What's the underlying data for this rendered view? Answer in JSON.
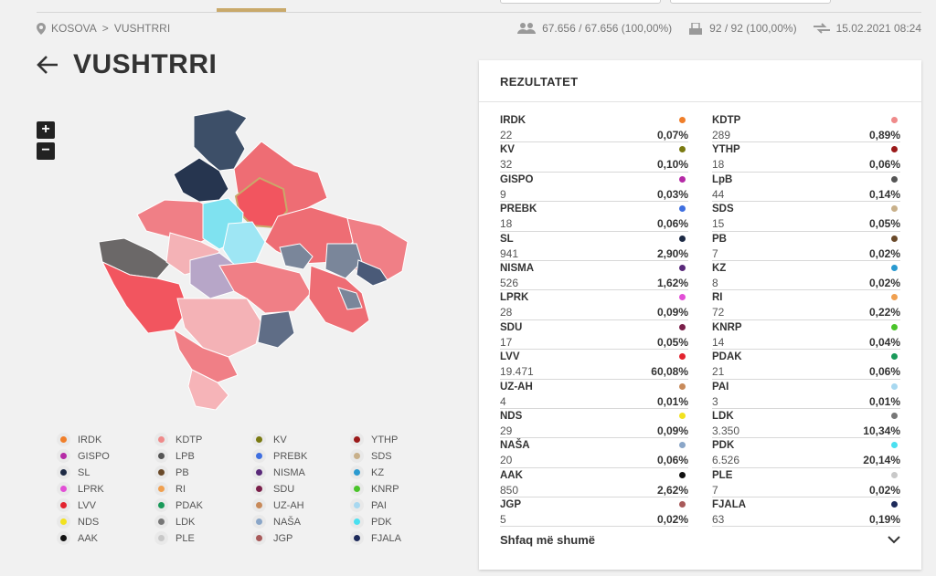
{
  "breadcrumb": {
    "root": "KOSOVA",
    "separator": ">",
    "current": "VUSHTRRI"
  },
  "stats": {
    "voters": "67.656 / 67.656 (100,00%)",
    "polling_stations": "92 / 92 (100,00%)",
    "updated": "15.02.2021 08:24"
  },
  "page": {
    "title": "VUSHTRRI"
  },
  "zoom": {
    "in": "+",
    "out": "−"
  },
  "results": {
    "title": "REZULTATET",
    "show_more": "Shfaq më shumë",
    "left": [
      {
        "name": "IRDK",
        "votes": "22",
        "pct": "0,07%",
        "color": "#f07f2a"
      },
      {
        "name": "KV",
        "votes": "32",
        "pct": "0,10%",
        "color": "#7a7a12"
      },
      {
        "name": "GISPO",
        "votes": "9",
        "pct": "0,03%",
        "color": "#b52aa6"
      },
      {
        "name": "PREBK",
        "votes": "18",
        "pct": "0,06%",
        "color": "#3f6fe0"
      },
      {
        "name": "SL",
        "votes": "941",
        "pct": "2,90%",
        "color": "#1d2a44"
      },
      {
        "name": "NISMA",
        "votes": "526",
        "pct": "1,62%",
        "color": "#5a2a7a"
      },
      {
        "name": "LPRK",
        "votes": "28",
        "pct": "0,09%",
        "color": "#e24fd6"
      },
      {
        "name": "SDU",
        "votes": "17",
        "pct": "0,05%",
        "color": "#7a1f4a"
      },
      {
        "name": "LVV",
        "votes": "19.471",
        "pct": "60,08%",
        "color": "#e3232f"
      },
      {
        "name": "UZ-AH",
        "votes": "4",
        "pct": "0,01%",
        "color": "#c88a5a"
      },
      {
        "name": "NDS",
        "votes": "29",
        "pct": "0,09%",
        "color": "#f2e21f"
      },
      {
        "name": "NAŠA",
        "votes": "20",
        "pct": "0,06%",
        "color": "#8aa6c8"
      },
      {
        "name": "AAK",
        "votes": "850",
        "pct": "2,62%",
        "color": "#111111"
      },
      {
        "name": "JGP",
        "votes": "5",
        "pct": "0,02%",
        "color": "#a85a5a"
      }
    ],
    "right": [
      {
        "name": "KDTP",
        "votes": "289",
        "pct": "0,89%",
        "color": "#ef8a8a"
      },
      {
        "name": "YTHP",
        "votes": "18",
        "pct": "0,06%",
        "color": "#9b1a1a"
      },
      {
        "name": "LpB",
        "votes": "44",
        "pct": "0,14%",
        "color": "#555555"
      },
      {
        "name": "SDS",
        "votes": "15",
        "pct": "0,05%",
        "color": "#c8b08a"
      },
      {
        "name": "PB",
        "votes": "7",
        "pct": "0,02%",
        "color": "#6a4a2a"
      },
      {
        "name": "KZ",
        "votes": "8",
        "pct": "0,02%",
        "color": "#2a9ad0"
      },
      {
        "name": "RI",
        "votes": "72",
        "pct": "0,22%",
        "color": "#f0a050"
      },
      {
        "name": "KNRP",
        "votes": "14",
        "pct": "0,04%",
        "color": "#4ac42a"
      },
      {
        "name": "PDAK",
        "votes": "21",
        "pct": "0,06%",
        "color": "#1a9a5a"
      },
      {
        "name": "PAI",
        "votes": "3",
        "pct": "0,01%",
        "color": "#a8d8f0"
      },
      {
        "name": "LDK",
        "votes": "3.350",
        "pct": "10,34%",
        "color": "#777777"
      },
      {
        "name": "PDK",
        "votes": "6.526",
        "pct": "20,14%",
        "color": "#4ae0f0"
      },
      {
        "name": "PLE",
        "votes": "7",
        "pct": "0,02%",
        "color": "#c8c8c8"
      },
      {
        "name": "FJALA",
        "votes": "63",
        "pct": "0,19%",
        "color": "#1d2a5a"
      }
    ]
  },
  "legend": [
    {
      "name": "IRDK",
      "color": "#f07f2a"
    },
    {
      "name": "KDTP",
      "color": "#ef8a8a"
    },
    {
      "name": "KV",
      "color": "#7a7a12"
    },
    {
      "name": "YTHP",
      "color": "#9b1a1a"
    },
    {
      "name": "GISPO",
      "color": "#b52aa6"
    },
    {
      "name": "LPB",
      "color": "#555555"
    },
    {
      "name": "PREBK",
      "color": "#3f6fe0"
    },
    {
      "name": "SDS",
      "color": "#c8b08a"
    },
    {
      "name": "SL",
      "color": "#1d2a44"
    },
    {
      "name": "PB",
      "color": "#6a4a2a"
    },
    {
      "name": "NISMA",
      "color": "#5a2a7a"
    },
    {
      "name": "KZ",
      "color": "#2a9ad0"
    },
    {
      "name": "LPRK",
      "color": "#e24fd6"
    },
    {
      "name": "RI",
      "color": "#f0a050"
    },
    {
      "name": "SDU",
      "color": "#7a1f4a"
    },
    {
      "name": "KNRP",
      "color": "#4ac42a"
    },
    {
      "name": "LVV",
      "color": "#e3232f"
    },
    {
      "name": "PDAK",
      "color": "#1a9a5a"
    },
    {
      "name": "UZ-AH",
      "color": "#c88a5a"
    },
    {
      "name": "PAI",
      "color": "#a8d8f0"
    },
    {
      "name": "NDS",
      "color": "#f2e21f"
    },
    {
      "name": "LDK",
      "color": "#777777"
    },
    {
      "name": "NAŠA",
      "color": "#8aa6c8"
    },
    {
      "name": "PDK",
      "color": "#4ae0f0"
    },
    {
      "name": "AAK",
      "color": "#111111"
    },
    {
      "name": "PLE",
      "color": "#c8c8c8"
    },
    {
      "name": "JGP",
      "color": "#a85a5a"
    },
    {
      "name": "FJALA",
      "color": "#1d2a5a"
    }
  ]
}
